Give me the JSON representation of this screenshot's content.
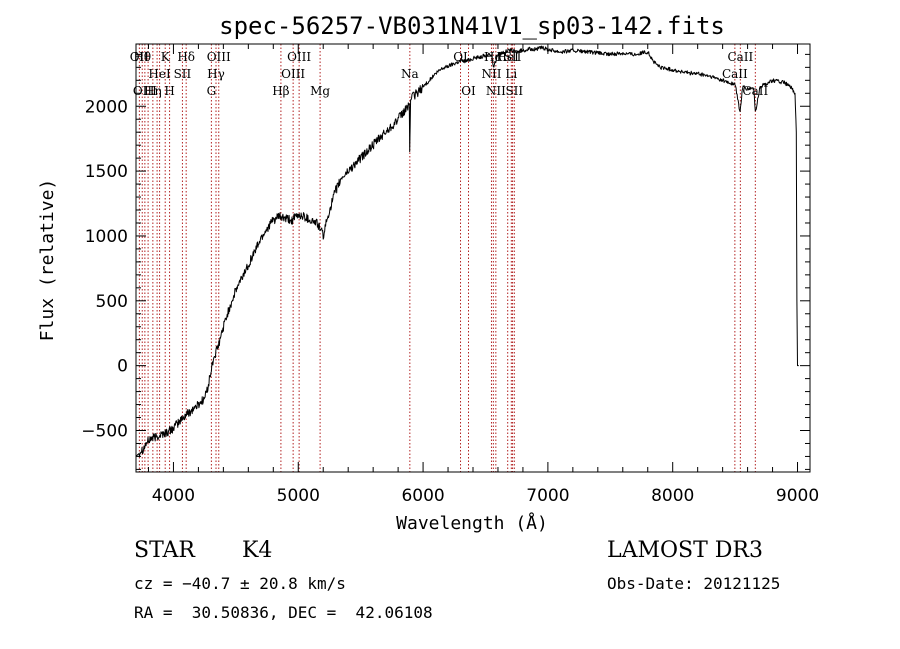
{
  "chart_data": {
    "type": "line",
    "title": "spec-56257-VB031N41V1_sp03-142.fits",
    "xlabel": "Wavelength (Å)",
    "ylabel": "Flux (relative)",
    "xlim": [
      3700,
      9100
    ],
    "ylim": [
      -820,
      2480
    ],
    "xticks": [
      4000,
      5000,
      6000,
      7000,
      8000,
      9000
    ],
    "yticks": [
      -500,
      0,
      500,
      1000,
      1500,
      2000
    ],
    "line_color": "#000000",
    "marker_color": "#b22222",
    "series": [
      {
        "name": "spectrum",
        "x": [
          3700,
          3720,
          3740,
          3760,
          3780,
          3800,
          3820,
          3850,
          3880,
          3900,
          3930,
          3960,
          4000,
          4050,
          4100,
          4150,
          4200,
          4250,
          4280,
          4300,
          4320,
          4340,
          4360,
          4400,
          4450,
          4500,
          4550,
          4600,
          4650,
          4700,
          4750,
          4800,
          4850,
          4900,
          4950,
          5000,
          5050,
          5100,
          5150,
          5180,
          5200,
          5250,
          5300,
          5350,
          5400,
          5450,
          5500,
          5550,
          5600,
          5650,
          5700,
          5750,
          5800,
          5850,
          5890,
          5893,
          5900,
          5950,
          6000,
          6050,
          6100,
          6150,
          6200,
          6250,
          6300,
          6350,
          6400,
          6450,
          6500,
          6550,
          6563,
          6600,
          6650,
          6700,
          6750,
          6800,
          6850,
          6900,
          6950,
          7000,
          7100,
          7200,
          7300,
          7400,
          7500,
          7600,
          7700,
          7800,
          7850,
          7900,
          8000,
          8100,
          8200,
          8300,
          8400,
          8450,
          8500,
          8540,
          8560,
          8600,
          8650,
          8662,
          8700,
          8800,
          8900,
          8950,
          8980,
          8990,
          8995,
          9000,
          9010
        ],
        "y": [
          -700,
          -680,
          -650,
          -640,
          -600,
          -580,
          -560,
          -555,
          -540,
          -530,
          -520,
          -510,
          -480,
          -430,
          -380,
          -340,
          -300,
          -250,
          -150,
          -50,
          50,
          100,
          150,
          300,
          450,
          580,
          680,
          780,
          880,
          980,
          1060,
          1120,
          1150,
          1130,
          1120,
          1160,
          1150,
          1120,
          1100,
          1050,
          1000,
          1200,
          1350,
          1450,
          1500,
          1550,
          1600,
          1650,
          1700,
          1750,
          1800,
          1850,
          1900,
          1960,
          2020,
          1650,
          2060,
          2100,
          2150,
          2200,
          2250,
          2290,
          2310,
          2330,
          2350,
          2350,
          2370,
          2380,
          2390,
          2400,
          2300,
          2400,
          2420,
          2430,
          2420,
          2430,
          2440,
          2440,
          2450,
          2440,
          2420,
          2430,
          2420,
          2410,
          2400,
          2410,
          2400,
          2420,
          2340,
          2300,
          2280,
          2260,
          2250,
          2230,
          2200,
          2180,
          2170,
          1950,
          2150,
          2130,
          2140,
          1950,
          2150,
          2200,
          2180,
          2140,
          2100,
          1800,
          500,
          0,
          0
        ]
      }
    ],
    "lines": [
      {
        "x": 3727,
        "top": "OII",
        "mid": "",
        "low": ""
      },
      {
        "x": 3750,
        "top": "Hθ",
        "mid": "",
        "low": ""
      },
      {
        "x": 3771,
        "top": "",
        "mid": "",
        "low": "OIII"
      },
      {
        "x": 3797,
        "top": "",
        "mid": "",
        "low": ""
      },
      {
        "x": 3835,
        "top": "",
        "mid": "",
        "low": "Hη"
      },
      {
        "x": 3869,
        "top": "",
        "mid": "",
        "low": ""
      },
      {
        "x": 3889,
        "top": "",
        "mid": "HeI",
        "low": ""
      },
      {
        "x": 3934,
        "top": "K",
        "mid": "",
        "low": ""
      },
      {
        "x": 3969,
        "top": "",
        "mid": "",
        "low": "H"
      },
      {
        "x": 4072,
        "top": "",
        "mid": "SII",
        "low": ""
      },
      {
        "x": 4102,
        "top": "Hδ",
        "mid": "",
        "low": ""
      },
      {
        "x": 4304,
        "top": "",
        "mid": "",
        "low": "G"
      },
      {
        "x": 4341,
        "top": "",
        "mid": "Hγ",
        "low": ""
      },
      {
        "x": 4363,
        "top": "OIII",
        "mid": "",
        "low": ""
      },
      {
        "x": 4861,
        "top": "",
        "mid": "",
        "low": "Hβ"
      },
      {
        "x": 4959,
        "top": "",
        "mid": "OIII",
        "low": ""
      },
      {
        "x": 5007,
        "top": "OIII",
        "mid": "",
        "low": ""
      },
      {
        "x": 5175,
        "top": "",
        "mid": "",
        "low": "Mg"
      },
      {
        "x": 5894,
        "top": "",
        "mid": "Na",
        "low": ""
      },
      {
        "x": 6300,
        "top": "OI",
        "mid": "",
        "low": ""
      },
      {
        "x": 6364,
        "top": "",
        "mid": "",
        "low": "OI"
      },
      {
        "x": 6548,
        "top": "",
        "mid": "NII",
        "low": ""
      },
      {
        "x": 6563,
        "top": "Hα",
        "mid": "",
        "low": ""
      },
      {
        "x": 6583,
        "top": "",
        "mid": "",
        "low": "NII"
      },
      {
        "x": 6678,
        "top": "HeI",
        "mid": "",
        "low": ""
      },
      {
        "x": 6707,
        "top": "",
        "mid": "Li",
        "low": ""
      },
      {
        "x": 6717,
        "top": "SII",
        "mid": "",
        "low": ""
      },
      {
        "x": 6731,
        "top": "",
        "mid": "",
        "low": "SII"
      },
      {
        "x": 8498,
        "top": "",
        "mid": "CaII",
        "low": ""
      },
      {
        "x": 8542,
        "top": "CaII",
        "mid": "",
        "low": ""
      },
      {
        "x": 8662,
        "top": "",
        "mid": "",
        "low": "CaII"
      }
    ]
  },
  "info": {
    "class_label": "STAR",
    "subclass": "K4",
    "survey": "LAMOST DR3",
    "cz_line": "cz = -40.7 ± 20.8 km/s",
    "obs_date": "Obs-Date: 20121125",
    "coords": "RA =  30.50836, DEC =  42.06108"
  }
}
